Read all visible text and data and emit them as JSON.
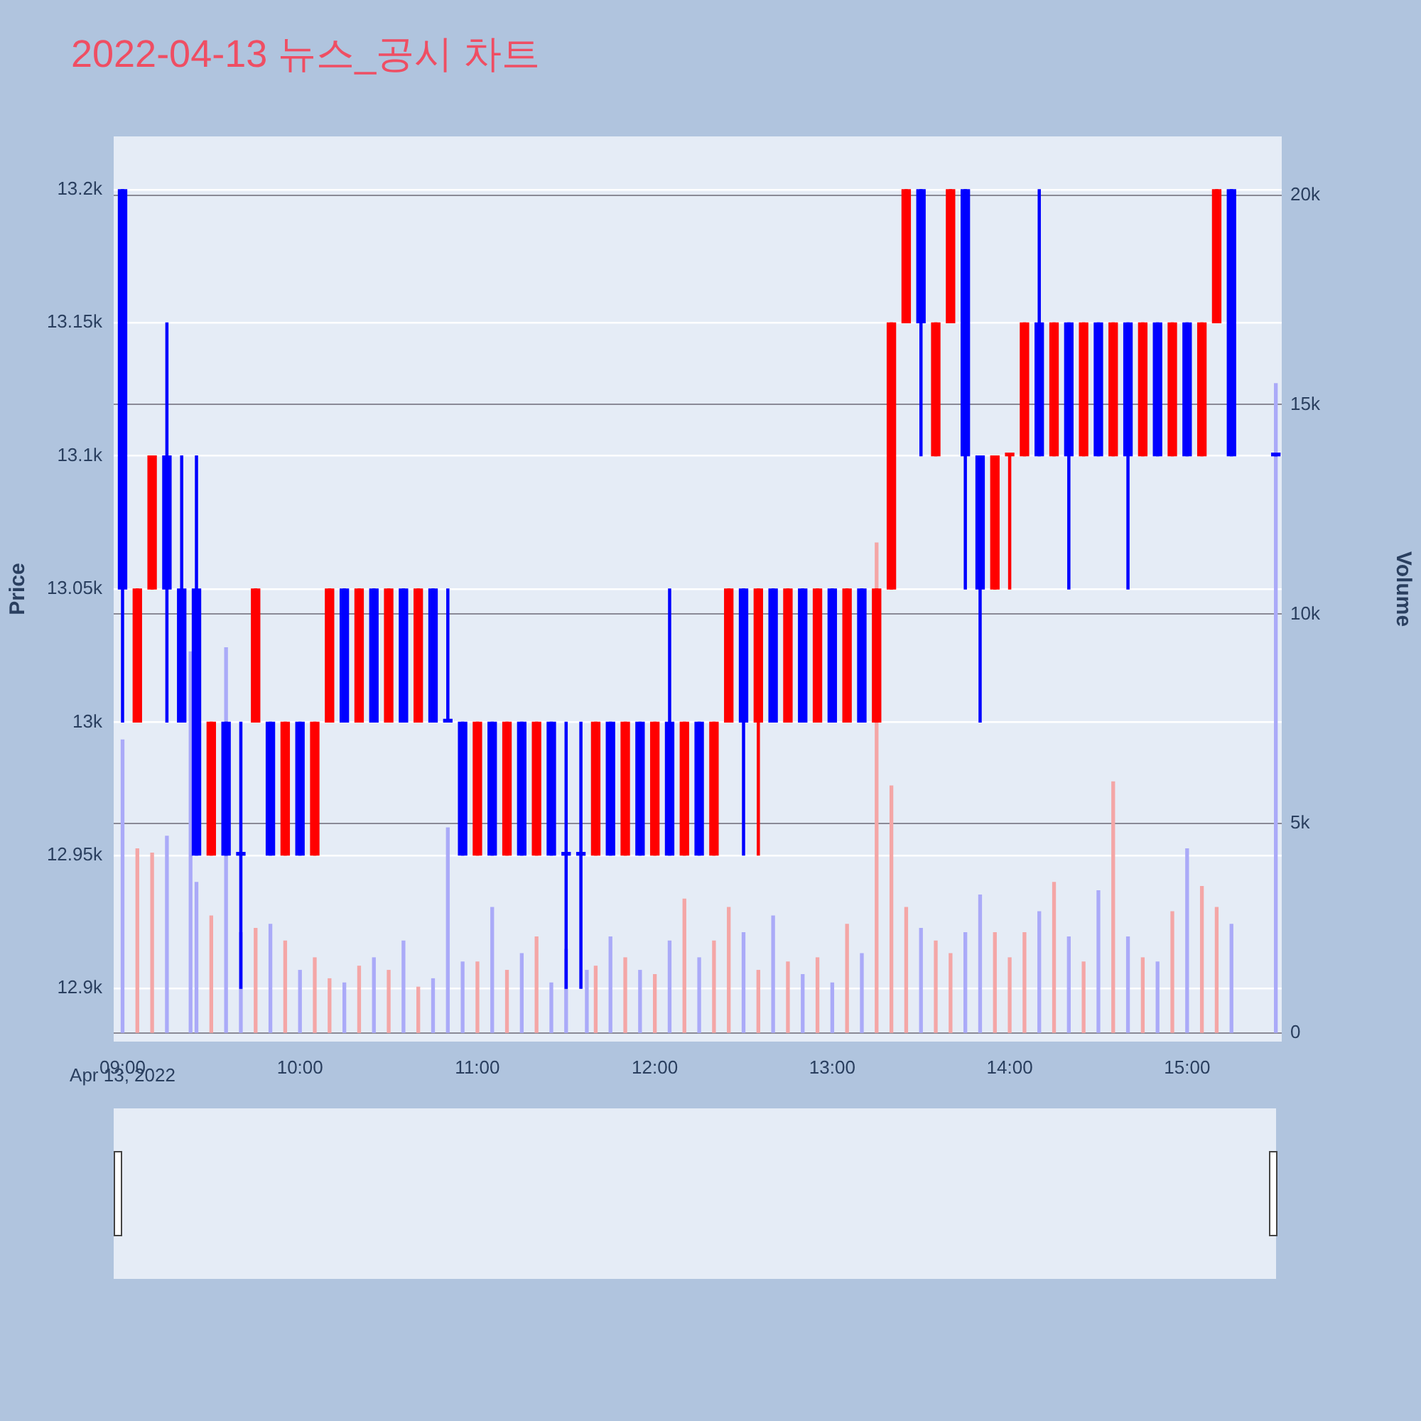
{
  "chart_data": {
    "type": "candlestick",
    "title": "2022-04-13 뉴스_공시 차트",
    "ylabel": "Price",
    "y2label": "Volume",
    "annotations": [
      "Apr 13, 2022"
    ],
    "x": [
      "2022-04-13T09:00",
      "2022-04-13T09:05",
      "2022-04-13T09:10",
      "2022-04-13T09:15",
      "2022-04-13T09:20",
      "2022-04-13T09:25",
      "2022-04-13T09:30",
      "2022-04-13T09:35",
      "2022-04-13T09:40",
      "2022-04-13T09:45",
      "2022-04-13T09:50",
      "2022-04-13T09:55",
      "2022-04-13T10:00",
      "2022-04-13T10:05",
      "2022-04-13T10:10",
      "2022-04-13T10:15",
      "2022-04-13T10:20",
      "2022-04-13T10:25",
      "2022-04-13T10:30",
      "2022-04-13T10:35",
      "2022-04-13T10:40",
      "2022-04-13T10:45",
      "2022-04-13T10:50",
      "2022-04-13T10:55",
      "2022-04-13T11:00",
      "2022-04-13T11:05",
      "2022-04-13T11:10",
      "2022-04-13T11:15",
      "2022-04-13T11:20",
      "2022-04-13T11:25",
      "2022-04-13T11:30",
      "2022-04-13T11:35",
      "2022-04-13T11:40",
      "2022-04-13T11:45",
      "2022-04-13T11:50",
      "2022-04-13T11:55",
      "2022-04-13T12:00",
      "2022-04-13T12:05",
      "2022-04-13T12:10",
      "2022-04-13T12:15",
      "2022-04-13T12:20",
      "2022-04-13T12:25",
      "2022-04-13T12:30",
      "2022-04-13T12:35",
      "2022-04-13T12:40",
      "2022-04-13T12:45",
      "2022-04-13T12:50",
      "2022-04-13T12:55",
      "2022-04-13T13:00",
      "2022-04-13T13:05",
      "2022-04-13T13:10",
      "2022-04-13T13:15",
      "2022-04-13T13:20",
      "2022-04-13T13:25",
      "2022-04-13T13:30",
      "2022-04-13T13:35",
      "2022-04-13T13:40",
      "2022-04-13T13:45",
      "2022-04-13T13:50",
      "2022-04-13T13:55",
      "2022-04-13T14:00",
      "2022-04-13T14:05",
      "2022-04-13T14:10",
      "2022-04-13T14:15",
      "2022-04-13T14:20",
      "2022-04-13T14:25",
      "2022-04-13T14:30",
      "2022-04-13T14:35",
      "2022-04-13T14:40",
      "2022-04-13T14:45",
      "2022-04-13T14:50",
      "2022-04-13T14:55",
      "2022-04-13T15:00",
      "2022-04-13T15:05",
      "2022-04-13T15:10",
      "2022-04-13T15:15",
      "2022-04-13T15:30"
    ],
    "ohlc": [
      [
        13200,
        13200,
        13000,
        13050
      ],
      [
        13000,
        13050,
        13000,
        13050
      ],
      [
        13050,
        13100,
        13050,
        13100
      ],
      [
        13100,
        13150,
        13000,
        13050
      ],
      [
        13050,
        13100,
        13000,
        13000
      ],
      [
        13050,
        13100,
        12950,
        12950
      ],
      [
        12950,
        13000,
        12950,
        13000
      ],
      [
        13000,
        13000,
        12950,
        12950
      ],
      [
        12950,
        13000,
        12900,
        12950
      ],
      [
        13000,
        13050,
        13000,
        13050
      ],
      [
        13000,
        13000,
        12950,
        12950
      ],
      [
        12950,
        13000,
        12950,
        13000
      ],
      [
        13000,
        13000,
        12950,
        12950
      ],
      [
        12950,
        13000,
        12950,
        13000
      ],
      [
        13000,
        13050,
        13000,
        13050
      ],
      [
        13050,
        13050,
        13000,
        13000
      ],
      [
        13000,
        13050,
        13000,
        13050
      ],
      [
        13050,
        13050,
        13000,
        13000
      ],
      [
        13000,
        13050,
        13000,
        13050
      ],
      [
        13050,
        13050,
        13000,
        13000
      ],
      [
        13000,
        13050,
        13000,
        13050
      ],
      [
        13050,
        13050,
        13000,
        13000
      ],
      [
        13000,
        13050,
        13000,
        13000
      ],
      [
        13000,
        13000,
        12950,
        12950
      ],
      [
        12950,
        13000,
        12950,
        13000
      ],
      [
        13000,
        13000,
        12950,
        12950
      ],
      [
        12950,
        13000,
        12950,
        13000
      ],
      [
        13000,
        13000,
        12950,
        12950
      ],
      [
        12950,
        13000,
        12950,
        13000
      ],
      [
        13000,
        13000,
        12950,
        12950
      ],
      [
        12950,
        13000,
        12900,
        12950
      ],
      [
        12950,
        13000,
        12900,
        12950
      ],
      [
        12950,
        13000,
        12950,
        13000
      ],
      [
        13000,
        13000,
        12950,
        12950
      ],
      [
        12950,
        13000,
        12950,
        13000
      ],
      [
        13000,
        13000,
        12950,
        12950
      ],
      [
        12950,
        13000,
        12950,
        13000
      ],
      [
        13000,
        13050,
        12950,
        12950
      ],
      [
        12950,
        13000,
        12950,
        13000
      ],
      [
        13000,
        13000,
        12950,
        12950
      ],
      [
        12950,
        13000,
        12950,
        13000
      ],
      [
        13000,
        13050,
        13000,
        13050
      ],
      [
        13050,
        13050,
        12950,
        13000
      ],
      [
        13000,
        13050,
        12950,
        13050
      ],
      [
        13050,
        13050,
        13000,
        13000
      ],
      [
        13000,
        13050,
        13000,
        13050
      ],
      [
        13050,
        13050,
        13000,
        13000
      ],
      [
        13000,
        13050,
        13000,
        13050
      ],
      [
        13050,
        13050,
        13000,
        13000
      ],
      [
        13000,
        13050,
        13000,
        13050
      ],
      [
        13050,
        13050,
        13000,
        13000
      ],
      [
        13000,
        13050,
        13000,
        13050
      ],
      [
        13050,
        13150,
        13050,
        13150
      ],
      [
        13150,
        13200,
        13150,
        13200
      ],
      [
        13200,
        13200,
        13100,
        13150
      ],
      [
        13100,
        13150,
        13100,
        13150
      ],
      [
        13150,
        13200,
        13150,
        13200
      ],
      [
        13200,
        13200,
        13050,
        13100
      ],
      [
        13100,
        13100,
        13000,
        13050
      ],
      [
        13050,
        13100,
        13050,
        13100
      ],
      [
        13100,
        13100,
        13050,
        13100
      ],
      [
        13100,
        13150,
        13100,
        13150
      ],
      [
        13150,
        13200,
        13100,
        13100
      ],
      [
        13100,
        13150,
        13100,
        13150
      ],
      [
        13150,
        13150,
        13050,
        13100
      ],
      [
        13100,
        13150,
        13100,
        13150
      ],
      [
        13150,
        13150,
        13100,
        13100
      ],
      [
        13100,
        13150,
        13100,
        13150
      ],
      [
        13150,
        13150,
        13050,
        13100
      ],
      [
        13100,
        13150,
        13100,
        13150
      ],
      [
        13150,
        13150,
        13100,
        13100
      ],
      [
        13100,
        13150,
        13100,
        13150
      ],
      [
        13150,
        13150,
        13100,
        13100
      ],
      [
        13100,
        13150,
        13100,
        13150
      ],
      [
        13150,
        13200,
        13150,
        13200
      ],
      [
        13200,
        13200,
        13100,
        13100
      ],
      [
        13100,
        13100,
        13100,
        13100
      ]
    ],
    "colors": [
      "#0000ff",
      "#ff0000",
      "#ff0000",
      "#0000ff",
      "#0000ff",
      "#0000ff",
      "#ff0000",
      "#0000ff",
      "#0000ff",
      "#ff0000",
      "#0000ff",
      "#ff0000",
      "#0000ff",
      "#ff0000",
      "#ff0000",
      "#0000ff",
      "#ff0000",
      "#0000ff",
      "#ff0000",
      "#0000ff",
      "#ff0000",
      "#0000ff",
      "#0000ff",
      "#0000ff",
      "#ff0000",
      "#0000ff",
      "#ff0000",
      "#0000ff",
      "#ff0000",
      "#0000ff",
      "#0000ff",
      "#0000ff",
      "#ff0000",
      "#0000ff",
      "#ff0000",
      "#0000ff",
      "#ff0000",
      "#0000ff",
      "#ff0000",
      "#0000ff",
      "#ff0000",
      "#ff0000",
      "#0000ff",
      "#ff0000",
      "#0000ff",
      "#ff0000",
      "#0000ff",
      "#ff0000",
      "#0000ff",
      "#ff0000",
      "#0000ff",
      "#ff0000",
      "#ff0000",
      "#ff0000",
      "#0000ff",
      "#ff0000",
      "#ff0000",
      "#0000ff",
      "#0000ff",
      "#ff0000",
      "#ff0000",
      "#ff0000",
      "#0000ff",
      "#ff0000",
      "#0000ff",
      "#ff0000",
      "#0000ff",
      "#ff0000",
      "#0000ff",
      "#ff0000",
      "#0000ff",
      "#ff0000",
      "#0000ff",
      "#ff0000",
      "#ff0000",
      "#0000ff",
      "#0000ff"
    ],
    "series": [
      {
        "type": "bar",
        "axis": "y2",
        "x": [
          "2022-04-13T09:00",
          "2022-04-13T09:05",
          "2022-04-13T09:10",
          "2022-04-13T09:15",
          "2022-04-13T09:23",
          "2022-04-13T09:25",
          "2022-04-13T09:30",
          "2022-04-13T09:35",
          "2022-04-13T09:40",
          "2022-04-13T09:45",
          "2022-04-13T09:50",
          "2022-04-13T09:55",
          "2022-04-13T10:00",
          "2022-04-13T10:05",
          "2022-04-13T10:10",
          "2022-04-13T10:15",
          "2022-04-13T10:20",
          "2022-04-13T10:25",
          "2022-04-13T10:30",
          "2022-04-13T10:35",
          "2022-04-13T10:40",
          "2022-04-13T10:45",
          "2022-04-13T10:50",
          "2022-04-13T10:55",
          "2022-04-13T11:00",
          "2022-04-13T11:05",
          "2022-04-13T11:10",
          "2022-04-13T11:15",
          "2022-04-13T11:20",
          "2022-04-13T11:25",
          "2022-04-13T11:30",
          "2022-04-13T11:37",
          "2022-04-13T11:40",
          "2022-04-13T11:45",
          "2022-04-13T11:50",
          "2022-04-13T11:55",
          "2022-04-13T12:00",
          "2022-04-13T12:05",
          "2022-04-13T12:10",
          "2022-04-13T12:15",
          "2022-04-13T12:20",
          "2022-04-13T12:25",
          "2022-04-13T12:30",
          "2022-04-13T12:35",
          "2022-04-13T12:40",
          "2022-04-13T12:45",
          "2022-04-13T12:50",
          "2022-04-13T12:55",
          "2022-04-13T13:00",
          "2022-04-13T13:05",
          "2022-04-13T13:10",
          "2022-04-13T13:15",
          "2022-04-13T13:20",
          "2022-04-13T13:25",
          "2022-04-13T13:30",
          "2022-04-13T13:35",
          "2022-04-13T13:40",
          "2022-04-13T13:45",
          "2022-04-13T13:50",
          "2022-04-13T13:55",
          "2022-04-13T14:00",
          "2022-04-13T14:05",
          "2022-04-13T14:10",
          "2022-04-13T14:15",
          "2022-04-13T14:20",
          "2022-04-13T14:25",
          "2022-04-13T14:30",
          "2022-04-13T14:35",
          "2022-04-13T14:40",
          "2022-04-13T14:45",
          "2022-04-13T14:50",
          "2022-04-13T14:55",
          "2022-04-13T15:00",
          "2022-04-13T15:05",
          "2022-04-13T15:10",
          "2022-04-13T15:15",
          "2022-04-13T15:30"
        ],
        "values": [
          7000,
          4400,
          4300,
          4700,
          9100,
          3600,
          2800,
          9200,
          2400,
          2500,
          2600,
          2200,
          1500,
          1800,
          1300,
          1200,
          1600,
          1800,
          1500,
          2200,
          1100,
          1300,
          4900,
          1700,
          1700,
          3000,
          1500,
          1900,
          2300,
          1200,
          2000,
          1500,
          1600,
          2300,
          1800,
          1500,
          1400,
          2200,
          3200,
          1800,
          2200,
          3000,
          2400,
          1500,
          2800,
          1700,
          1400,
          1800,
          1200,
          2600,
          1900,
          11700,
          5900,
          3000,
          2500,
          2200,
          1900,
          2400,
          3300,
          2400,
          1800,
          2400,
          2900,
          3600,
          2300,
          1700,
          3400,
          6000,
          2300,
          1800,
          1700,
          2900,
          4400,
          3500,
          3000,
          2600,
          15500
        ],
        "colors": [
          "#aaaaf8",
          "#f4a6a6",
          "#f4a6a6",
          "#aaaaf8",
          "#aaaaf8",
          "#aaaaf8",
          "#f4a6a6",
          "#aaaaf8",
          "#aaaaf8",
          "#f4a6a6",
          "#aaaaf8",
          "#f4a6a6",
          "#aaaaf8",
          "#f4a6a6",
          "#f4a6a6",
          "#aaaaf8",
          "#f4a6a6",
          "#aaaaf8",
          "#f4a6a6",
          "#aaaaf8",
          "#f4a6a6",
          "#aaaaf8",
          "#aaaaf8",
          "#aaaaf8",
          "#f4a6a6",
          "#aaaaf8",
          "#f4a6a6",
          "#aaaaf8",
          "#f4a6a6",
          "#aaaaf8",
          "#aaaaf8",
          "#aaaaf8",
          "#f4a6a6",
          "#aaaaf8",
          "#f4a6a6",
          "#aaaaf8",
          "#f4a6a6",
          "#aaaaf8",
          "#f4a6a6",
          "#aaaaf8",
          "#f4a6a6",
          "#f4a6a6",
          "#aaaaf8",
          "#f4a6a6",
          "#aaaaf8",
          "#f4a6a6",
          "#aaaaf8",
          "#f4a6a6",
          "#aaaaf8",
          "#f4a6a6",
          "#aaaaf8",
          "#f4a6a6",
          "#f4a6a6",
          "#f4a6a6",
          "#aaaaf8",
          "#f4a6a6",
          "#f4a6a6",
          "#aaaaf8",
          "#aaaaf8",
          "#f4a6a6",
          "#f4a6a6",
          "#f4a6a6",
          "#aaaaf8",
          "#f4a6a6",
          "#aaaaf8",
          "#f4a6a6",
          "#aaaaf8",
          "#f4a6a6",
          "#aaaaf8",
          "#f4a6a6",
          "#aaaaf8",
          "#f4a6a6",
          "#aaaaf8",
          "#f4a6a6",
          "#f4a6a6",
          "#aaaaf8",
          "#aaaaf8"
        ]
      }
    ],
    "xlim": [
      "2022-04-13T08:57",
      "2022-04-13T15:32"
    ],
    "xticks": [
      {
        "value": "2022-04-13T09:00",
        "label": "09:00"
      },
      {
        "value": "2022-04-13T10:00",
        "label": "10:00"
      },
      {
        "value": "2022-04-13T11:00",
        "label": "11:00"
      },
      {
        "value": "2022-04-13T12:00",
        "label": "12:00"
      },
      {
        "value": "2022-04-13T13:00",
        "label": "13:00"
      },
      {
        "value": "2022-04-13T14:00",
        "label": "14:00"
      },
      {
        "value": "2022-04-13T15:00",
        "label": "15:00"
      }
    ],
    "ylim": [
      12880,
      13220
    ],
    "yticks": [
      {
        "value": 12900,
        "label": "12.9k"
      },
      {
        "value": 12950,
        "label": "12.95k"
      },
      {
        "value": 13000,
        "label": "13k"
      },
      {
        "value": 13050,
        "label": "13.05k"
      },
      {
        "value": 13100,
        "label": "13.1k"
      },
      {
        "value": 13150,
        "label": "13.15k"
      },
      {
        "value": 13200,
        "label": "13.2k"
      }
    ],
    "y2lim": [
      -200,
      21400
    ],
    "y2ticks": [
      0,
      {
        "value": 5000,
        "label": "5k"
      },
      {
        "value": 10000,
        "label": "10k"
      },
      {
        "value": 15000,
        "label": "15k"
      },
      {
        "value": 20000,
        "label": "20k"
      }
    ],
    "grid": "y"
  }
}
